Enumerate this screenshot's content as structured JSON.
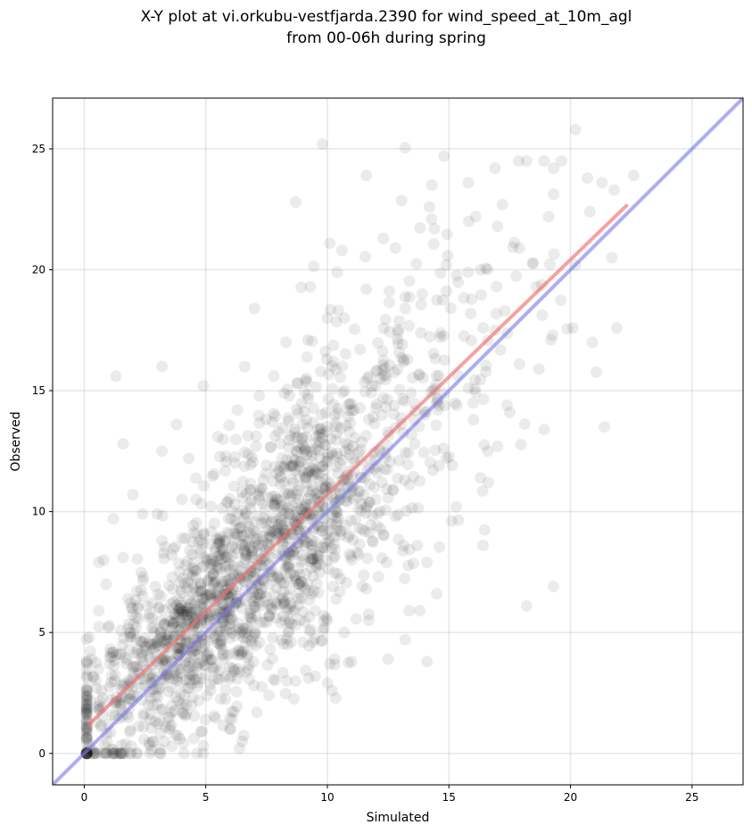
{
  "chart_data": {
    "type": "scatter",
    "title_lines": [
      "X-Y plot at vi.orkubu-vestfjarda.2390 for wind_speed_at_10m_agl",
      "from 00-06h during spring"
    ],
    "xlabel": "Simulated",
    "ylabel": "Observed",
    "xlim": [
      -1.3,
      27.1
    ],
    "ylim": [
      -1.3,
      27.1
    ],
    "xticks": [
      0,
      5,
      10,
      15,
      20,
      25
    ],
    "yticks": [
      0,
      5,
      10,
      15,
      20,
      25
    ],
    "grid": true,
    "point_count": 2000,
    "point_color": "#000000",
    "point_opacity": 0.08,
    "regression_line": {
      "color": "#f07070",
      "x": [
        0.2,
        22.3
      ],
      "y": [
        1.2,
        22.65
      ]
    },
    "identity_line": {
      "color": "#7777ee",
      "x": [
        -1.3,
        27.1
      ],
      "y": [
        -1.3,
        27.1
      ]
    },
    "points": [
      [
        9.8,
        25.2
      ],
      [
        13.2,
        25.05
      ],
      [
        20.2,
        25.8
      ],
      [
        14.8,
        24.7
      ],
      [
        18.2,
        24.5
      ],
      [
        16.9,
        24.2
      ],
      [
        11.6,
        23.9
      ],
      [
        19.3,
        24.2
      ],
      [
        22.6,
        23.9
      ],
      [
        15.8,
        23.6
      ],
      [
        14.3,
        23.5
      ],
      [
        21.3,
        23.6
      ],
      [
        20.7,
        23.8
      ],
      [
        21.8,
        23.3
      ],
      [
        8.7,
        22.8
      ],
      [
        14.2,
        22.6
      ],
      [
        17.2,
        22.7
      ],
      [
        19.1,
        22.2
      ],
      [
        16.1,
        22.2
      ],
      [
        20.8,
        22.4
      ],
      [
        14.4,
        21.7
      ],
      [
        17.0,
        21.8
      ],
      [
        10.1,
        21.1
      ],
      [
        12.3,
        21.3
      ],
      [
        10.6,
        20.8
      ],
      [
        12.8,
        20.9
      ],
      [
        17.9,
        20.9
      ],
      [
        21.7,
        20.5
      ],
      [
        14.9,
        20.2
      ],
      [
        16.3,
        20.0
      ],
      [
        20.2,
        20.2
      ],
      [
        10.4,
        19.9
      ],
      [
        15.8,
        19.9
      ],
      [
        9.3,
        19.3
      ],
      [
        11.6,
        19.2
      ],
      [
        13.9,
        19.0
      ],
      [
        18.6,
        19.3
      ],
      [
        7.0,
        18.4
      ],
      [
        13.2,
        18.4
      ],
      [
        17.3,
        18.3
      ],
      [
        10.0,
        18.0
      ],
      [
        10.7,
        18.0
      ],
      [
        21.9,
        17.6
      ],
      [
        20.1,
        17.6
      ],
      [
        16.9,
        17.5
      ],
      [
        8.3,
        17.0
      ],
      [
        9.2,
        17.1
      ],
      [
        20.9,
        17.0
      ],
      [
        19.2,
        17.1
      ],
      [
        3.2,
        16.0
      ],
      [
        6.6,
        16.0
      ],
      [
        18.7,
        15.9
      ],
      [
        1.3,
        15.6
      ],
      [
        7.8,
        15.6
      ],
      [
        12.0,
        15.8
      ],
      [
        17.9,
        16.1
      ],
      [
        4.9,
        15.2
      ],
      [
        15.8,
        15.1
      ],
      [
        7.2,
        14.8
      ],
      [
        12.3,
        14.7
      ],
      [
        16.0,
        14.5
      ],
      [
        6.3,
        14.2
      ],
      [
        11.1,
        14.2
      ],
      [
        14.0,
        14.0
      ],
      [
        17.4,
        14.4
      ],
      [
        3.8,
        13.6
      ],
      [
        9.6,
        13.4
      ],
      [
        21.4,
        13.5
      ],
      [
        1.6,
        12.8
      ],
      [
        5.5,
        13.1
      ],
      [
        8.8,
        12.7
      ],
      [
        16.6,
        12.5
      ],
      [
        17.0,
        12.7
      ],
      [
        3.2,
        12.5
      ],
      [
        4.3,
        12.2
      ],
      [
        10.5,
        12.0
      ],
      [
        14.6,
        11.9
      ],
      [
        16.3,
        11.4
      ],
      [
        2.0,
        10.7
      ],
      [
        4.6,
        10.5
      ],
      [
        11.4,
        10.3
      ],
      [
        15.3,
        10.2
      ],
      [
        2.4,
        9.9
      ],
      [
        3.0,
        9.9
      ],
      [
        7.9,
        9.6
      ],
      [
        12.8,
        9.8
      ],
      [
        1.2,
        9.7
      ],
      [
        3.2,
        8.8
      ],
      [
        9.9,
        8.5
      ],
      [
        13.7,
        8.6
      ],
      [
        16.4,
        8.6
      ],
      [
        0.8,
        8.0
      ],
      [
        1.6,
        8.1
      ],
      [
        11.0,
        8.0
      ],
      [
        14.1,
        7.9
      ],
      [
        0.6,
        7.9
      ],
      [
        5.3,
        7.4
      ],
      [
        12.1,
        7.3
      ],
      [
        0.9,
        7.0
      ],
      [
        4.8,
        6.7
      ],
      [
        11.6,
        6.8
      ],
      [
        14.5,
        6.6
      ],
      [
        19.3,
        6.9
      ],
      [
        0.6,
        5.9
      ],
      [
        2.2,
        6.0
      ],
      [
        9.5,
        5.9
      ],
      [
        13.8,
        5.9
      ],
      [
        18.2,
        6.1
      ],
      [
        1.0,
        5.2
      ],
      [
        4.0,
        5.2
      ],
      [
        11.7,
        5.5
      ],
      [
        13.2,
        4.7
      ],
      [
        0.2,
        4.8
      ],
      [
        3.0,
        4.6
      ],
      [
        9.4,
        4.6
      ],
      [
        0.3,
        3.9
      ],
      [
        2.0,
        3.6
      ],
      [
        10.1,
        3.7
      ],
      [
        11.0,
        3.8
      ],
      [
        12.5,
        3.9
      ],
      [
        14.1,
        3.8
      ],
      [
        0.5,
        2.7
      ],
      [
        2.8,
        2.9
      ],
      [
        7.6,
        2.4
      ],
      [
        10.2,
        2.6
      ],
      [
        0.6,
        1.8
      ],
      [
        4.2,
        2.0
      ],
      [
        7.1,
        1.7
      ],
      [
        1.0,
        1.2
      ],
      [
        3.5,
        1.0
      ],
      [
        6.0,
        1.0
      ],
      [
        1.7,
        0.4
      ],
      [
        3.3,
        0.5
      ],
      [
        6.5,
        0.5
      ],
      [
        0.4,
        0.1
      ],
      [
        2.7,
        0.0
      ],
      [
        4.8,
        0.9
      ]
    ]
  }
}
